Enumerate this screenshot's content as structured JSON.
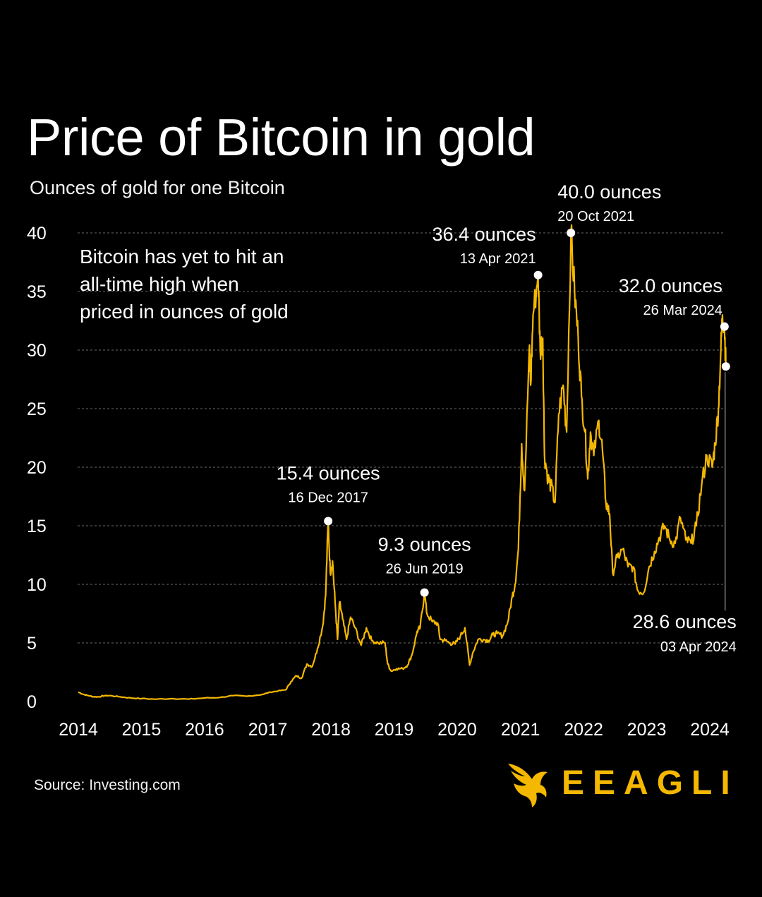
{
  "header": {
    "title": "Price of Bitcoin in gold",
    "subtitle": "Ounces of gold for one Bitcoin"
  },
  "footer": {
    "source": "Source: Investing.com",
    "brand": "EEAGLI"
  },
  "colors": {
    "background": "#000000",
    "line": "#f5b800",
    "marker": "#ffffff",
    "grid": "#6a6a6a",
    "brand": "#f5b800"
  },
  "icons": {
    "brand_mark": "eagle-icon"
  },
  "chart_data": {
    "type": "line",
    "title": "Price of Bitcoin in gold",
    "subtitle": "Ounces of gold for one Bitcoin",
    "xlabel": "",
    "ylabel": "",
    "xlim": [
      "2014-01-01",
      "2024-04-10"
    ],
    "ylim": [
      0,
      40
    ],
    "yticks": [
      0,
      5,
      10,
      15,
      20,
      25,
      30,
      35,
      40
    ],
    "xticks": [
      "2014",
      "2015",
      "2016",
      "2017",
      "2018",
      "2019",
      "2020",
      "2021",
      "2022",
      "2023",
      "2024"
    ],
    "grid": "horizontal dashed",
    "note": [
      "Bitcoin has yet to hit an",
      "all-time high when",
      "priced in ounces of gold"
    ],
    "series": [
      {
        "name": "",
        "points": [
          [
            "2014-01-01",
            0.8
          ],
          [
            "2014-02-01",
            0.6
          ],
          [
            "2014-03-01",
            0.5
          ],
          [
            "2014-04-01",
            0.4
          ],
          [
            "2014-05-01",
            0.4
          ],
          [
            "2014-06-01",
            0.5
          ],
          [
            "2014-07-01",
            0.5
          ],
          [
            "2014-09-01",
            0.4
          ],
          [
            "2014-11-01",
            0.3
          ],
          [
            "2015-01-01",
            0.25
          ],
          [
            "2015-04-01",
            0.2
          ],
          [
            "2015-07-01",
            0.25
          ],
          [
            "2015-10-01",
            0.2
          ],
          [
            "2016-01-01",
            0.3
          ],
          [
            "2016-04-01",
            0.35
          ],
          [
            "2016-06-15",
            0.5
          ],
          [
            "2016-09-01",
            0.45
          ],
          [
            "2016-12-01",
            0.6
          ],
          [
            "2017-01-15",
            0.8
          ],
          [
            "2017-03-01",
            0.9
          ],
          [
            "2017-04-15",
            1.0
          ],
          [
            "2017-05-15",
            1.7
          ],
          [
            "2017-06-15",
            2.2
          ],
          [
            "2017-07-15",
            2.0
          ],
          [
            "2017-08-15",
            3.2
          ],
          [
            "2017-09-15",
            3.0
          ],
          [
            "2017-10-15",
            4.5
          ],
          [
            "2017-11-15",
            6.5
          ],
          [
            "2017-12-01",
            9.0
          ],
          [
            "2017-12-16",
            15.4
          ],
          [
            "2017-12-28",
            11.0
          ],
          [
            "2018-01-10",
            12.0
          ],
          [
            "2018-01-25",
            8.5
          ],
          [
            "2018-02-08",
            5.3
          ],
          [
            "2018-02-20",
            8.5
          ],
          [
            "2018-03-10",
            7.0
          ],
          [
            "2018-04-01",
            5.3
          ],
          [
            "2018-04-25",
            7.2
          ],
          [
            "2018-05-20",
            6.3
          ],
          [
            "2018-06-25",
            4.8
          ],
          [
            "2018-07-25",
            6.3
          ],
          [
            "2018-08-25",
            5.2
          ],
          [
            "2018-10-01",
            5.0
          ],
          [
            "2018-11-10",
            5.0
          ],
          [
            "2018-11-25",
            3.2
          ],
          [
            "2018-12-15",
            2.6
          ],
          [
            "2019-01-15",
            2.8
          ],
          [
            "2019-02-20",
            2.8
          ],
          [
            "2019-03-20",
            3.1
          ],
          [
            "2019-04-15",
            4.0
          ],
          [
            "2019-05-15",
            6.0
          ],
          [
            "2019-06-01",
            6.3
          ],
          [
            "2019-06-26",
            9.3
          ],
          [
            "2019-07-10",
            7.5
          ],
          [
            "2019-08-10",
            6.8
          ],
          [
            "2019-09-10",
            6.7
          ],
          [
            "2019-09-25",
            5.3
          ],
          [
            "2019-10-25",
            5.2
          ],
          [
            "2019-11-20",
            5.0
          ],
          [
            "2019-12-20",
            4.9
          ],
          [
            "2020-01-20",
            5.6
          ],
          [
            "2020-02-15",
            6.3
          ],
          [
            "2020-03-13",
            3.1
          ],
          [
            "2020-04-01",
            4.2
          ],
          [
            "2020-05-01",
            5.3
          ],
          [
            "2020-06-01",
            5.3
          ],
          [
            "2020-07-01",
            5.2
          ],
          [
            "2020-07-25",
            5.7
          ],
          [
            "2020-08-20",
            5.8
          ],
          [
            "2020-09-20",
            5.6
          ],
          [
            "2020-10-20",
            6.8
          ],
          [
            "2020-11-15",
            9.0
          ],
          [
            "2020-12-01",
            10.0
          ],
          [
            "2020-12-20",
            13.0
          ],
          [
            "2021-01-08",
            22.0
          ],
          [
            "2021-01-25",
            18.0
          ],
          [
            "2021-02-21",
            30.0
          ],
          [
            "2021-03-01",
            27.0
          ],
          [
            "2021-03-15",
            33.0
          ],
          [
            "2021-04-13",
            36.4
          ],
          [
            "2021-04-25",
            30.0
          ],
          [
            "2021-05-10",
            31.0
          ],
          [
            "2021-05-20",
            21.0
          ],
          [
            "2021-06-10",
            19.0
          ],
          [
            "2021-06-25",
            18.5
          ],
          [
            "2021-07-20",
            17.0
          ],
          [
            "2021-08-10",
            24.5
          ],
          [
            "2021-09-05",
            27.0
          ],
          [
            "2021-09-25",
            23.0
          ],
          [
            "2021-10-20",
            40.0
          ],
          [
            "2021-11-10",
            35.0
          ],
          [
            "2021-12-01",
            31.0
          ],
          [
            "2021-12-20",
            26.0
          ],
          [
            "2022-01-10",
            23.0
          ],
          [
            "2022-01-25",
            19.0
          ],
          [
            "2022-02-10",
            23.0
          ],
          [
            "2022-03-01",
            21.0
          ],
          [
            "2022-03-30",
            24.0
          ],
          [
            "2022-04-20",
            21.5
          ],
          [
            "2022-05-10",
            17.0
          ],
          [
            "2022-06-01",
            16.0
          ],
          [
            "2022-06-18",
            11.0
          ],
          [
            "2022-07-15",
            12.3
          ],
          [
            "2022-08-15",
            13.0
          ],
          [
            "2022-09-15",
            11.5
          ],
          [
            "2022-10-15",
            11.5
          ],
          [
            "2022-11-09",
            9.5
          ],
          [
            "2022-12-15",
            9.3
          ],
          [
            "2023-01-15",
            11.5
          ],
          [
            "2023-02-15",
            12.8
          ],
          [
            "2023-03-15",
            14.0
          ],
          [
            "2023-04-15",
            15.0
          ],
          [
            "2023-05-15",
            13.8
          ],
          [
            "2023-06-15",
            13.5
          ],
          [
            "2023-07-15",
            15.7
          ],
          [
            "2023-08-15",
            13.8
          ],
          [
            "2023-09-15",
            13.5
          ],
          [
            "2023-10-15",
            15.0
          ],
          [
            "2023-11-15, ",
            18.5
          ],
          [
            "2023-12-15",
            21.0
          ],
          [
            "2024-01-15",
            20.0
          ],
          [
            "2024-02-01",
            22.0
          ],
          [
            "2024-02-20",
            25.0
          ],
          [
            "2024-03-05",
            30.0
          ],
          [
            "2024-03-14",
            33.0
          ],
          [
            "2024-03-26",
            32.0
          ],
          [
            "2024-04-03",
            28.6
          ]
        ]
      }
    ],
    "annotations": [
      {
        "value": "15.4 ounces",
        "date": "16 Dec 2017",
        "x": "2017-12-16",
        "y": 15.4,
        "align": "center-above"
      },
      {
        "value": "9.3 ounces",
        "date": "26 Jun 2019",
        "x": "2019-06-26",
        "y": 9.3,
        "align": "center-above"
      },
      {
        "value": "36.4 ounces",
        "date": "13 Apr 2021",
        "x": "2021-04-13",
        "y": 36.4,
        "align": "left-above"
      },
      {
        "value": "40.0 ounces",
        "date": "20 Oct 2021",
        "x": "2021-10-20",
        "y": 40.0,
        "align": "right-above"
      },
      {
        "value": "32.0 ounces",
        "date": "26 Mar 2024",
        "x": "2024-03-26",
        "y": 32.0,
        "align": "left-above"
      },
      {
        "value": "28.6 ounces",
        "date": "03 Apr 2024",
        "x": "2024-04-03",
        "y": 28.6,
        "align": "left-below"
      }
    ]
  }
}
